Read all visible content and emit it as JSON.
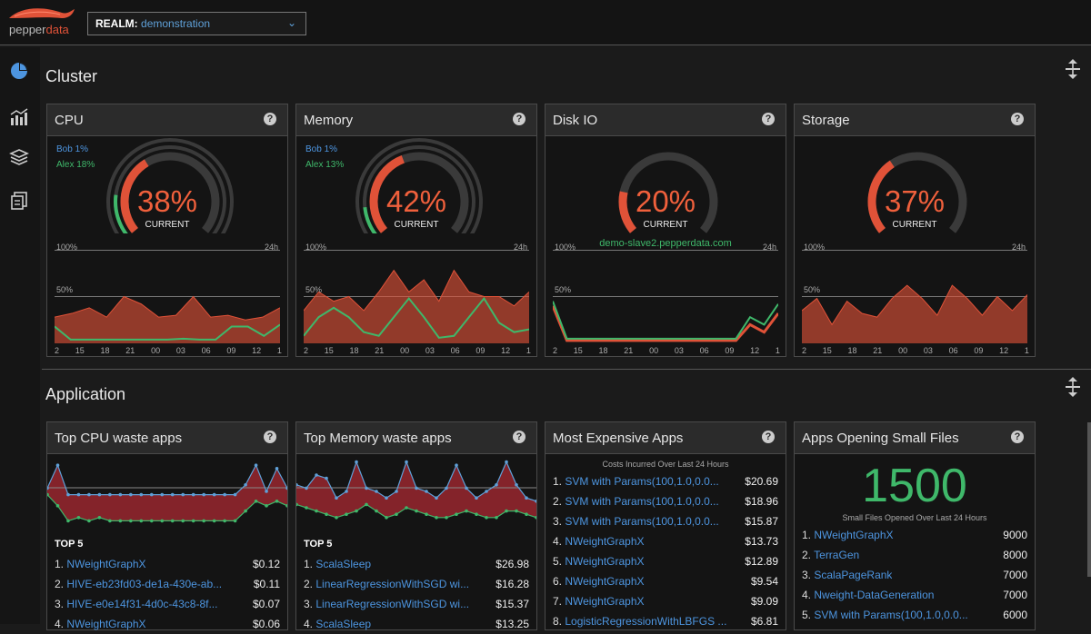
{
  "header": {
    "logo_text_a": "pepper",
    "logo_text_b": "data",
    "realm_label": "REALM:",
    "realm_value": "demonstration"
  },
  "sidenav": {
    "items": [
      "dashboard-icon",
      "charts-icon",
      "layers-icon",
      "reports-icon"
    ]
  },
  "sections": {
    "cluster": "Cluster",
    "application": "Application"
  },
  "cluster_panels": [
    {
      "title": "CPU",
      "legend1": "Bob 1%",
      "legend2": "Alex 18%",
      "percent": "38%",
      "current": "CURRENT",
      "host": "",
      "pct": 38,
      "blue": 1,
      "green": 18
    },
    {
      "title": "Memory",
      "legend1": "Bob 1%",
      "legend2": "Alex 13%",
      "percent": "42%",
      "current": "CURRENT",
      "host": "",
      "pct": 42,
      "blue": 1,
      "green": 13
    },
    {
      "title": "Disk IO",
      "legend1": "",
      "legend2": "",
      "percent": "20%",
      "current": "CURRENT",
      "host": "demo-slave2.pepperdata.com",
      "pct": 20,
      "blue": 0,
      "green": 0
    },
    {
      "title": "Storage",
      "legend1": "",
      "legend2": "",
      "percent": "37%",
      "current": "CURRENT",
      "host": "",
      "pct": 37,
      "blue": 0,
      "green": 0
    }
  ],
  "axis": {
    "top": "100%",
    "right": "24h",
    "mid": "50%"
  },
  "ticks": [
    "2",
    "15",
    "18",
    "21",
    "00",
    "03",
    "06",
    "09",
    "12",
    "1"
  ],
  "spark_data": {
    "cpu": {
      "red": [
        0.28,
        0.32,
        0.38,
        0.28,
        0.5,
        0.42,
        0.28,
        0.3,
        0.5,
        0.28,
        0.3,
        0.25,
        0.28,
        0.38
      ],
      "green": [
        0.18,
        0.04,
        0.04,
        0.04,
        0.04,
        0.04,
        0.04,
        0.04,
        0.05,
        0.04,
        0.04,
        0.18,
        0.18,
        0.08,
        0.2
      ]
    },
    "memory": {
      "red": [
        0.35,
        0.55,
        0.45,
        0.5,
        0.35,
        0.55,
        0.78,
        0.55,
        0.68,
        0.45,
        0.78,
        0.55,
        0.5,
        0.5,
        0.4,
        0.55
      ],
      "green": [
        0.08,
        0.28,
        0.38,
        0.28,
        0.12,
        0.08,
        0.28,
        0.48,
        0.28,
        0.06,
        0.08,
        0.28,
        0.48,
        0.22,
        0.12,
        0.15
      ]
    },
    "diskio": {
      "red": [
        0.4,
        0.03,
        0.03,
        0.03,
        0.03,
        0.03,
        0.03,
        0.03,
        0.03,
        0.03,
        0.03,
        0.03,
        0.03,
        0.03,
        0.2,
        0.12,
        0.32
      ],
      "green": [
        0.45,
        0.05,
        0.05,
        0.05,
        0.05,
        0.05,
        0.05,
        0.05,
        0.05,
        0.05,
        0.05,
        0.05,
        0.05,
        0.05,
        0.28,
        0.2,
        0.42
      ]
    },
    "storage": {
      "red": [
        0.35,
        0.48,
        0.2,
        0.45,
        0.32,
        0.28,
        0.48,
        0.62,
        0.48,
        0.3,
        0.62,
        0.48,
        0.3,
        0.5,
        0.35,
        0.52
      ]
    }
  },
  "app_panels": {
    "cpu_waste": {
      "title": "Top CPU waste apps",
      "top_label": "TOP 5",
      "rows": [
        {
          "i": "1.",
          "name": "NWeightGraphX",
          "value": "$0.12"
        },
        {
          "i": "2.",
          "name": "HIVE-eb23fd03-de1a-430e-ab...",
          "value": "$0.11"
        },
        {
          "i": "3.",
          "name": "HIVE-e0e14f31-4d0c-43c8-8f...",
          "value": "$0.07"
        },
        {
          "i": "4.",
          "name": "NWeightGraphX",
          "value": "$0.06"
        }
      ],
      "spark_top": [
        0.55,
        0.9,
        0.45,
        0.45,
        0.45,
        0.45,
        0.45,
        0.45,
        0.45,
        0.45,
        0.45,
        0.45,
        0.45,
        0.45,
        0.45,
        0.45,
        0.45,
        0.45,
        0.45,
        0.6,
        0.9,
        0.5,
        0.85,
        0.55
      ],
      "spark_bot": [
        0.45,
        0.28,
        0.05,
        0.1,
        0.05,
        0.1,
        0.05,
        0.05,
        0.05,
        0.05,
        0.05,
        0.05,
        0.05,
        0.05,
        0.05,
        0.05,
        0.05,
        0.05,
        0.05,
        0.2,
        0.35,
        0.28,
        0.35,
        0.28
      ]
    },
    "mem_waste": {
      "title": "Top Memory waste apps",
      "top_label": "TOP 5",
      "rows": [
        {
          "i": "1.",
          "name": "ScalaSleep",
          "value": "$26.98"
        },
        {
          "i": "2.",
          "name": "LinearRegressionWithSGD wi...",
          "value": "$16.28"
        },
        {
          "i": "3.",
          "name": "LinearRegressionWithSGD wi...",
          "value": "$15.37"
        },
        {
          "i": "4.",
          "name": "ScalaSleep",
          "value": "$13.25"
        }
      ],
      "spark_top": [
        0.6,
        0.55,
        0.75,
        0.7,
        0.4,
        0.5,
        0.95,
        0.55,
        0.5,
        0.4,
        0.5,
        0.95,
        0.55,
        0.5,
        0.4,
        0.55,
        0.9,
        0.55,
        0.4,
        0.5,
        0.6,
        0.95,
        0.6,
        0.4,
        0.35
      ],
      "spark_bot": [
        0.3,
        0.25,
        0.2,
        0.15,
        0.1,
        0.15,
        0.2,
        0.3,
        0.2,
        0.1,
        0.15,
        0.25,
        0.2,
        0.15,
        0.1,
        0.1,
        0.15,
        0.2,
        0.15,
        0.1,
        0.1,
        0.2,
        0.2,
        0.15,
        0.1
      ]
    },
    "expensive": {
      "title": "Most Expensive Apps",
      "caption": "Costs Incurred Over Last 24 Hours",
      "rows": [
        {
          "i": "1.",
          "name": "SVM with Params(100,1.0,0.0...",
          "value": "$20.69"
        },
        {
          "i": "2.",
          "name": "SVM with Params(100,1.0,0.0...",
          "value": "$18.96"
        },
        {
          "i": "3.",
          "name": "SVM with Params(100,1.0,0.0...",
          "value": "$15.87"
        },
        {
          "i": "4.",
          "name": "NWeightGraphX",
          "value": "$13.73"
        },
        {
          "i": "5.",
          "name": "NWeightGraphX",
          "value": "$12.89"
        },
        {
          "i": "6.",
          "name": "NWeightGraphX",
          "value": "$9.54"
        },
        {
          "i": "7.",
          "name": "NWeightGraphX",
          "value": "$9.09"
        },
        {
          "i": "8.",
          "name": "LogisticRegressionWithLBFGS ...",
          "value": "$6.81"
        }
      ]
    },
    "small_files": {
      "title": "Apps Opening Small Files",
      "big": "1500",
      "caption": "Small Files Opened Over Last 24 Hours",
      "rows": [
        {
          "i": "1.",
          "name": "NWeightGraphX",
          "value": "9000"
        },
        {
          "i": "2.",
          "name": "TerraGen",
          "value": "8000"
        },
        {
          "i": "3.",
          "name": "ScalaPageRank",
          "value": "7000"
        },
        {
          "i": "4.",
          "name": "Nweight-DataGeneration",
          "value": "7000"
        },
        {
          "i": "5.",
          "name": "SVM with Params(100,1.0,0.0...",
          "value": "6000"
        }
      ]
    }
  },
  "colors": {
    "red": "#e05238",
    "green": "#3fb86a",
    "blue": "#4d95e0",
    "gauge_bg": "#3a3a3a"
  }
}
